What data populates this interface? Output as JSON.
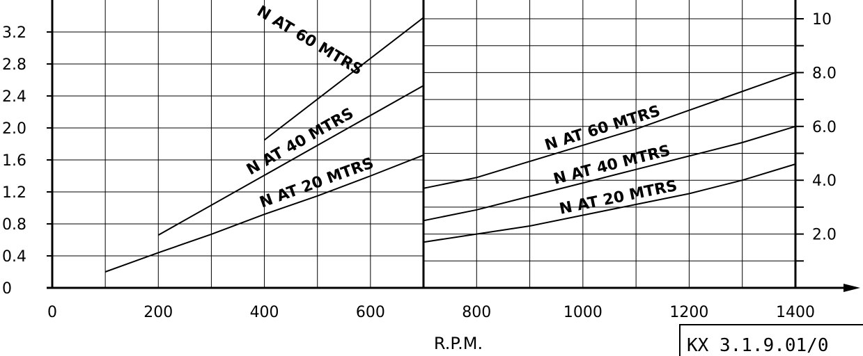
{
  "chart_data": [
    {
      "type": "line",
      "xlabel": "R.P.M.",
      "ylabel": "",
      "xlim": [
        0,
        700
      ],
      "ylim": [
        0,
        3.4
      ],
      "x_ticks": [
        "0",
        "200",
        "400",
        "600"
      ],
      "y_ticks": [
        "0",
        "0.4",
        "0.8",
        "1.2",
        "1.6",
        "2.0",
        "2.4",
        "2.8",
        "3.2"
      ],
      "grid": true,
      "series": [
        {
          "name": "N AT 60 MTRS",
          "x": [
            400,
            700
          ],
          "y": [
            1.85,
            3.38
          ]
        },
        {
          "name": "N AT 40 MTRS",
          "x": [
            200,
            700
          ],
          "y": [
            0.66,
            2.53
          ]
        },
        {
          "name": "N AT 20 MTRS",
          "x": [
            100,
            200,
            300,
            400,
            500,
            600,
            700
          ],
          "y": [
            0.2,
            0.44,
            0.67,
            0.92,
            1.15,
            1.4,
            1.66
          ]
        }
      ]
    },
    {
      "type": "line",
      "xlabel": "R.P.M.",
      "ylabel": "",
      "xlim": [
        700,
        1400
      ],
      "ylim": [
        0,
        11
      ],
      "x_ticks": [
        "800",
        "1000",
        "1200",
        "1400"
      ],
      "y_ticks": [
        "2.0",
        "4.0",
        "6.0",
        "8.0",
        "10"
      ],
      "grid": true,
      "series": [
        {
          "name": "N AT 60 MTRS",
          "x": [
            700,
            800,
            900,
            1000,
            1100,
            1200,
            1300,
            1400
          ],
          "y": [
            3.7,
            4.1,
            4.7,
            5.3,
            5.9,
            6.6,
            7.3,
            8.0
          ]
        },
        {
          "name": "N AT 40 MTRS",
          "x": [
            700,
            800,
            900,
            1000,
            1100,
            1200,
            1300,
            1400
          ],
          "y": [
            2.5,
            2.9,
            3.4,
            3.9,
            4.4,
            4.9,
            5.4,
            6.0
          ]
        },
        {
          "name": "N AT 20 MTRS",
          "x": [
            700,
            800,
            900,
            1000,
            1100,
            1200,
            1300,
            1400
          ],
          "y": [
            1.7,
            2.0,
            2.3,
            2.7,
            3.1,
            3.5,
            4.0,
            4.6
          ]
        }
      ]
    }
  ],
  "drawing_ref": "KX 3.1.9.01/0"
}
